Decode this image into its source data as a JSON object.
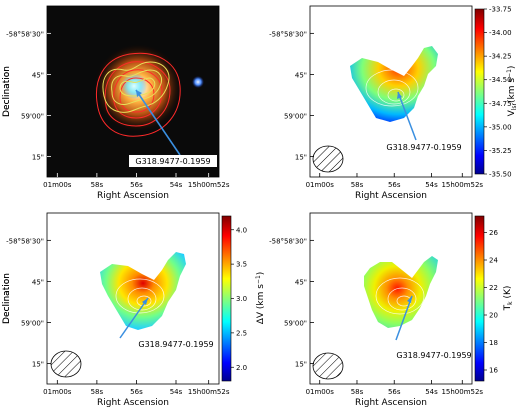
{
  "chart_data": [
    {
      "type": "heatmap",
      "panel": "three-color image with contours",
      "xlabel": "Right Ascension",
      "ylabel": "Declination",
      "xticks": [
        "01m00s",
        "58s",
        "56s",
        "54s",
        "15h00m52s"
      ],
      "yticks": [
        "-58°58'30\"",
        "45\"",
        "59'00\"",
        "15\""
      ],
      "annotation": "G318.9477-0.1959",
      "contour_colors": [
        "#ff2a2a",
        "#e8e05a"
      ],
      "colorbar": null
    },
    {
      "type": "heatmap",
      "xlabel": "Right Ascension",
      "ylabel": "Declination",
      "xticks": [
        "01m00s",
        "58s",
        "56s",
        "54s",
        "15h00m52s"
      ],
      "yticks": [
        "-58°58'30\"",
        "45\"",
        "59'00\"",
        "15\""
      ],
      "annotation": "G318.9477-0.1959",
      "colorbar": {
        "label": "V_lsr (km s⁻¹)",
        "label_main": "V",
        "label_sub": "lsr",
        "label_unit": "(km s",
        "label_sup": "−1",
        "label_close": ")",
        "range": [
          -35.5,
          -33.75
        ],
        "ticks": [
          "-33.75",
          "-34.00",
          "-34.25",
          "-34.50",
          "-34.75",
          "-35.00",
          "-35.25",
          "-35.50"
        ],
        "colormap": "jet"
      }
    },
    {
      "type": "heatmap",
      "xlabel": "Right Ascension",
      "ylabel": "Declination",
      "xticks": [
        "01m00s",
        "58s",
        "56s",
        "54s",
        "15h00m52s"
      ],
      "yticks": [
        "-58°58'30\"",
        "45\"",
        "59'00\"",
        "15\""
      ],
      "annotation": "G318.9477-0.1959",
      "colorbar": {
        "label": "ΔV (km s⁻¹)",
        "label_main": "ΔV",
        "label_sub": "",
        "label_unit": " (km s",
        "label_sup": "−1",
        "label_close": ")",
        "range": [
          1.8,
          4.2
        ],
        "ticks": [
          "4.0",
          "3.5",
          "3.0",
          "2.5",
          "2.0"
        ],
        "colormap": "jet"
      }
    },
    {
      "type": "heatmap",
      "xlabel": "Right Ascension",
      "ylabel": "Declination",
      "xticks": [
        "01m00s",
        "58s",
        "56s",
        "54s",
        "15h00m52s"
      ],
      "yticks": [
        "-58°58'30\"",
        "45\"",
        "59'00\"",
        "15\""
      ],
      "annotation": "G318.9477-0.1959",
      "colorbar": {
        "label": "T_k (K)",
        "label_main": "T",
        "label_sub": "k",
        "label_unit": " (K)",
        "label_sup": "",
        "label_close": "",
        "range": [
          15.2,
          27.2
        ],
        "ticks": [
          "26",
          "24",
          "22",
          "20",
          "18",
          "16"
        ],
        "colormap": "jet"
      }
    }
  ]
}
